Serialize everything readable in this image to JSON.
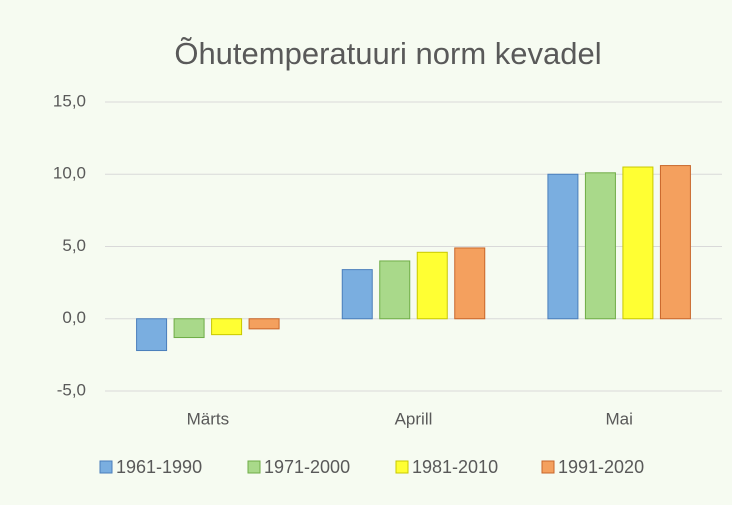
{
  "chart_data": {
    "type": "bar",
    "title": "Õhutemperatuuri norm kevadel",
    "categories": [
      "Märts",
      "Aprill",
      "Mai"
    ],
    "series": [
      {
        "name": "1961-1990",
        "color": "#7aaee0",
        "edgecolor": "#4a7ebb",
        "values": [
          -2.2,
          3.4,
          10.0
        ]
      },
      {
        "name": "1971-2000",
        "color": "#a9d98a",
        "edgecolor": "#6fac46",
        "values": [
          -1.3,
          4.0,
          10.1
        ]
      },
      {
        "name": "1981-2010",
        "color": "#ffff33",
        "edgecolor": "#c8c800",
        "values": [
          -1.1,
          4.6,
          10.5
        ]
      },
      {
        "name": "1991-2020",
        "color": "#f4a05e",
        "edgecolor": "#c8662a",
        "values": [
          -0.7,
          4.9,
          10.6
        ]
      }
    ],
    "ylim": [
      -5,
      15
    ],
    "yticks": [
      {
        "value": -5,
        "label": "-5,0"
      },
      {
        "value": 0,
        "label": "0,0"
      },
      {
        "value": 5,
        "label": "5,0"
      },
      {
        "value": 10,
        "label": "10,0"
      },
      {
        "value": 15,
        "label": "15,0"
      }
    ],
    "grid": true,
    "legend": "bottom"
  }
}
